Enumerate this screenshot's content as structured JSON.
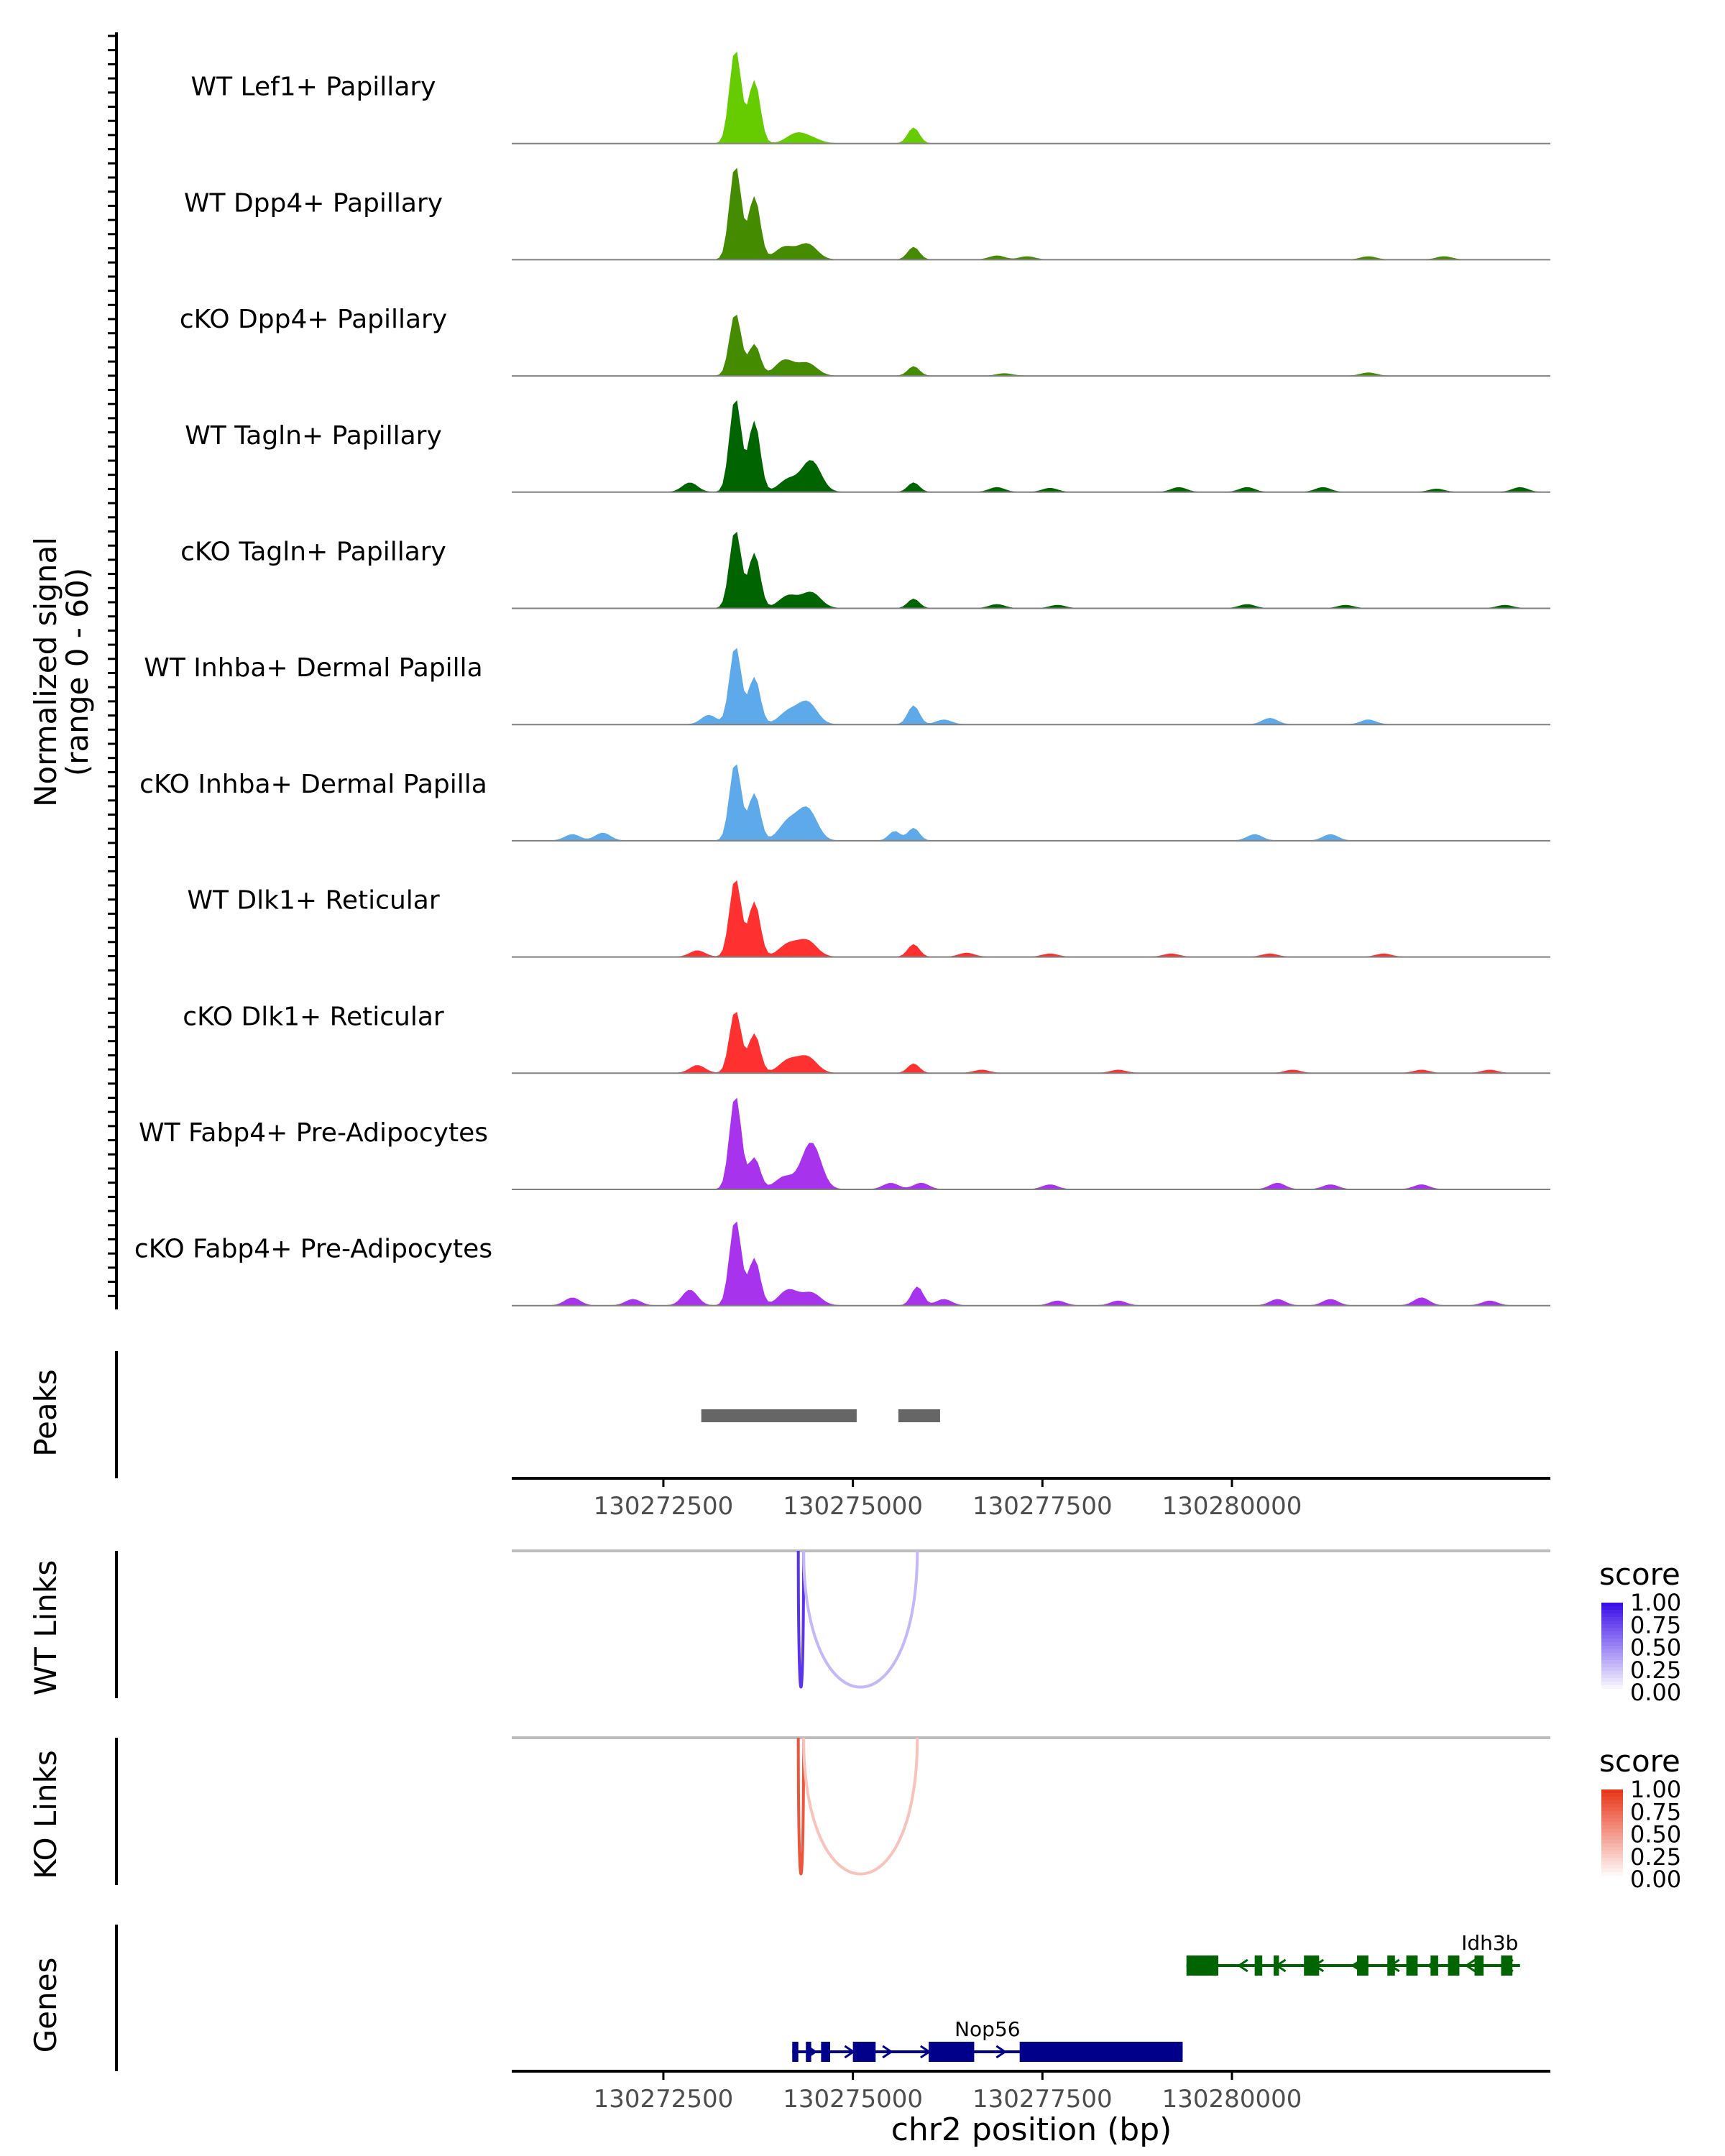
{
  "chart_data": {
    "type": "area",
    "title": "",
    "xlabel": "chr2 position (bp)",
    "xlim": [
      130270500,
      130284200
    ],
    "x_ticks": [
      130272500,
      130275000,
      130277500,
      130280000
    ],
    "x_tick_labels": [
      "130272500",
      "130275000",
      "130277500",
      "130280000"
    ],
    "coverage": {
      "ylabel_line1": "Normalized signal",
      "ylabel_line2": "(range 0 - 60)",
      "ylim": [
        0,
        60
      ],
      "tracks": [
        {
          "name": "WT Lef1+ Papillary",
          "color": "#66CC00",
          "peaks": [
            [
              130273450,
              60,
              1.5
            ],
            [
              130273700,
              40,
              1.5
            ],
            [
              130274250,
              6,
              2.5
            ],
            [
              130274450,
              3,
              2.5
            ],
            [
              130275800,
              10,
              1.5
            ]
          ]
        },
        {
          "name": "WT Dpp4+ Papillary",
          "color": "#458B00",
          "peaks": [
            [
              130273450,
              60,
              1.5
            ],
            [
              130273700,
              40,
              1.5
            ],
            [
              130274100,
              8,
              2.5
            ],
            [
              130274400,
              10,
              2.5
            ],
            [
              130275800,
              8,
              1.5
            ],
            [
              130276900,
              2.5,
              2
            ],
            [
              130277300,
              2,
              2
            ],
            [
              130281800,
              2,
              2
            ],
            [
              130282800,
              2,
              2
            ]
          ]
        },
        {
          "name": "cKO Dpp4+ Papillary",
          "color": "#458B00",
          "peaks": [
            [
              130273450,
              40,
              1.5
            ],
            [
              130273700,
              20,
              1.5
            ],
            [
              130274100,
              10,
              2.5
            ],
            [
              130274400,
              8,
              2.5
            ],
            [
              130275800,
              6,
              1.5
            ],
            [
              130277000,
              1.5,
              2
            ],
            [
              130281800,
              2,
              2
            ]
          ]
        },
        {
          "name": "WT Tagln+ Papillary",
          "color": "#006400",
          "peaks": [
            [
              130273450,
              60,
              1.5
            ],
            [
              130273700,
              45,
              1.5
            ],
            [
              130274150,
              8,
              2.5
            ],
            [
              130274450,
              20,
              2.5
            ],
            [
              130272850,
              6,
              2
            ],
            [
              130275800,
              6,
              1.5
            ],
            [
              130276900,
              3,
              2
            ],
            [
              130277600,
              2.5,
              2
            ],
            [
              130279300,
              3,
              2
            ],
            [
              130280200,
              3,
              2
            ],
            [
              130281200,
              3,
              2
            ],
            [
              130282700,
              2,
              2
            ],
            [
              130283800,
              3,
              2
            ]
          ]
        },
        {
          "name": "cKO Tagln+ Papillary",
          "color": "#006400",
          "peaks": [
            [
              130273450,
              50,
              1.5
            ],
            [
              130273700,
              35,
              1.5
            ],
            [
              130274150,
              8,
              2.5
            ],
            [
              130274450,
              10,
              2.5
            ],
            [
              130275800,
              6,
              1.5
            ],
            [
              130276900,
              2.5,
              2
            ],
            [
              130277700,
              2,
              2
            ],
            [
              130280200,
              2.5,
              2
            ],
            [
              130281500,
              2,
              2
            ],
            [
              130283600,
              2,
              2
            ]
          ]
        },
        {
          "name": "WT Inhba+ Dermal Papilla",
          "color": "#5DA9E9",
          "peaks": [
            [
              130273450,
              50,
              1.5
            ],
            [
              130273700,
              30,
              1.5
            ],
            [
              130274150,
              8,
              2.5
            ],
            [
              130274400,
              14,
              2.5
            ],
            [
              130275800,
              12,
              1.5
            ],
            [
              130276200,
              3,
              2
            ],
            [
              130280500,
              4,
              2
            ],
            [
              130281800,
              3,
              2
            ],
            [
              130273100,
              6,
              2
            ]
          ]
        },
        {
          "name": "cKO Inhba+ Dermal Papilla",
          "color": "#5DA9E9",
          "peaks": [
            [
              130273450,
              50,
              1.5
            ],
            [
              130273700,
              30,
              1.5
            ],
            [
              130274150,
              12,
              2.5
            ],
            [
              130274400,
              20,
              2.5
            ],
            [
              130271700,
              5,
              2
            ],
            [
              130275550,
              6,
              1.5
            ],
            [
              130275800,
              8,
              1.5
            ],
            [
              130280300,
              4,
              2
            ],
            [
              130281300,
              4,
              2
            ],
            [
              130271300,
              4,
              2
            ]
          ]
        },
        {
          "name": "WT Dlk1+ Reticular",
          "color": "#FF3030",
          "peaks": [
            [
              130273450,
              50,
              1.5
            ],
            [
              130273700,
              35,
              1.5
            ],
            [
              130274150,
              8,
              2.5
            ],
            [
              130274400,
              10,
              2.5
            ],
            [
              130272950,
              4,
              2
            ],
            [
              130275800,
              8,
              1.5
            ],
            [
              130276500,
              2.5,
              2
            ],
            [
              130277600,
              2,
              2
            ],
            [
              130279200,
              2,
              2
            ],
            [
              130280500,
              2,
              2
            ],
            [
              130282000,
              2,
              2
            ]
          ]
        },
        {
          "name": "cKO Dlk1+ Reticular",
          "color": "#FF3030",
          "peaks": [
            [
              130273450,
              40,
              1.5
            ],
            [
              130273700,
              25,
              1.5
            ],
            [
              130274150,
              8,
              2.5
            ],
            [
              130274400,
              10,
              2.5
            ],
            [
              130272950,
              5,
              2
            ],
            [
              130275800,
              6,
              1.5
            ],
            [
              130276700,
              2,
              2
            ],
            [
              130278500,
              2,
              2
            ],
            [
              130280800,
              2,
              2
            ],
            [
              130282500,
              2,
              2
            ],
            [
              130283400,
              2,
              2
            ]
          ]
        },
        {
          "name": "WT Fabp4+ Pre-Adipocytes",
          "color": "#A734EC",
          "peaks": [
            [
              130273450,
              60,
              1.5
            ],
            [
              130273700,
              20,
              1.5
            ],
            [
              130274100,
              8,
              2.5
            ],
            [
              130274450,
              30,
              2.5
            ],
            [
              130275500,
              4,
              2
            ],
            [
              130275900,
              4,
              2
            ],
            [
              130277600,
              3,
              2
            ],
            [
              130280600,
              4,
              2
            ],
            [
              130281300,
              3,
              2
            ],
            [
              130282500,
              3,
              2
            ]
          ]
        },
        {
          "name": "cKO Fabp4+ Pre-Adipocytes",
          "color": "#A734EC",
          "peaks": [
            [
              130273450,
              55,
              1.5
            ],
            [
              130273700,
              30,
              1.5
            ],
            [
              130274150,
              10,
              2.5
            ],
            [
              130274450,
              8,
              2.5
            ],
            [
              130271300,
              5,
              2
            ],
            [
              130272100,
              4,
              2
            ],
            [
              130272850,
              10,
              2
            ],
            [
              130275850,
              12,
              1.5
            ],
            [
              130276200,
              4,
              2
            ],
            [
              130277700,
              3,
              2
            ],
            [
              130278500,
              3,
              2
            ],
            [
              130280600,
              4,
              2
            ],
            [
              130281300,
              4,
              2
            ],
            [
              130282500,
              5,
              2
            ],
            [
              130283400,
              3,
              2
            ]
          ]
        }
      ]
    },
    "peaks": {
      "ylabel": "Peaks",
      "color": "#666666",
      "regions": [
        [
          130273000,
          130275050
        ],
        [
          130275600,
          130276150
        ]
      ]
    },
    "links": [
      {
        "ylabel": "WT Links",
        "legend_title": "score",
        "legend_ticks": [
          "1.00",
          "0.75",
          "0.50",
          "0.25",
          "0.00"
        ],
        "low_color": "#FFFFFF",
        "high_color": "#3C10E8",
        "arcs": [
          [
            130274280,
            130274350,
            0.85
          ],
          [
            130274350,
            130275850,
            0.3
          ]
        ]
      },
      {
        "ylabel": "KO Links",
        "legend_title": "score",
        "legend_ticks": [
          "1.00",
          "0.75",
          "0.50",
          "0.25",
          "0.00"
        ],
        "low_color": "#FFFFFF",
        "high_color": "#E8381B",
        "arcs": [
          [
            130274280,
            130274350,
            0.85
          ],
          [
            130274350,
            130275850,
            0.3
          ]
        ]
      }
    ],
    "genes": {
      "ylabel": "Genes",
      "items": [
        {
          "name": "Idh3b",
          "color": "#006400",
          "strand": "-",
          "start": 130279400,
          "end": 130283800,
          "exons": [
            [
              130279400,
              130279820
            ],
            [
              130280300,
              130280400
            ],
            [
              130280550,
              130280620
            ],
            [
              130280950,
              130281150
            ],
            [
              130281650,
              130281800
            ],
            [
              130282050,
              130282150
            ],
            [
              130282300,
              130282450
            ],
            [
              130282620,
              130282720
            ],
            [
              130282850,
              130283000
            ],
            [
              130283200,
              130283320
            ],
            [
              130283550,
              130283700
            ]
          ]
        },
        {
          "name": "Nop56",
          "color": "#00008B",
          "strand": "+",
          "start": 130274200,
          "end": 130279350,
          "exons": [
            [
              130274200,
              130274280
            ],
            [
              130274380,
              130274450
            ],
            [
              130274580,
              130274700
            ],
            [
              130275000,
              130275300
            ],
            [
              130276000,
              130276600
            ],
            [
              130277200,
              130279350
            ]
          ]
        }
      ]
    }
  }
}
